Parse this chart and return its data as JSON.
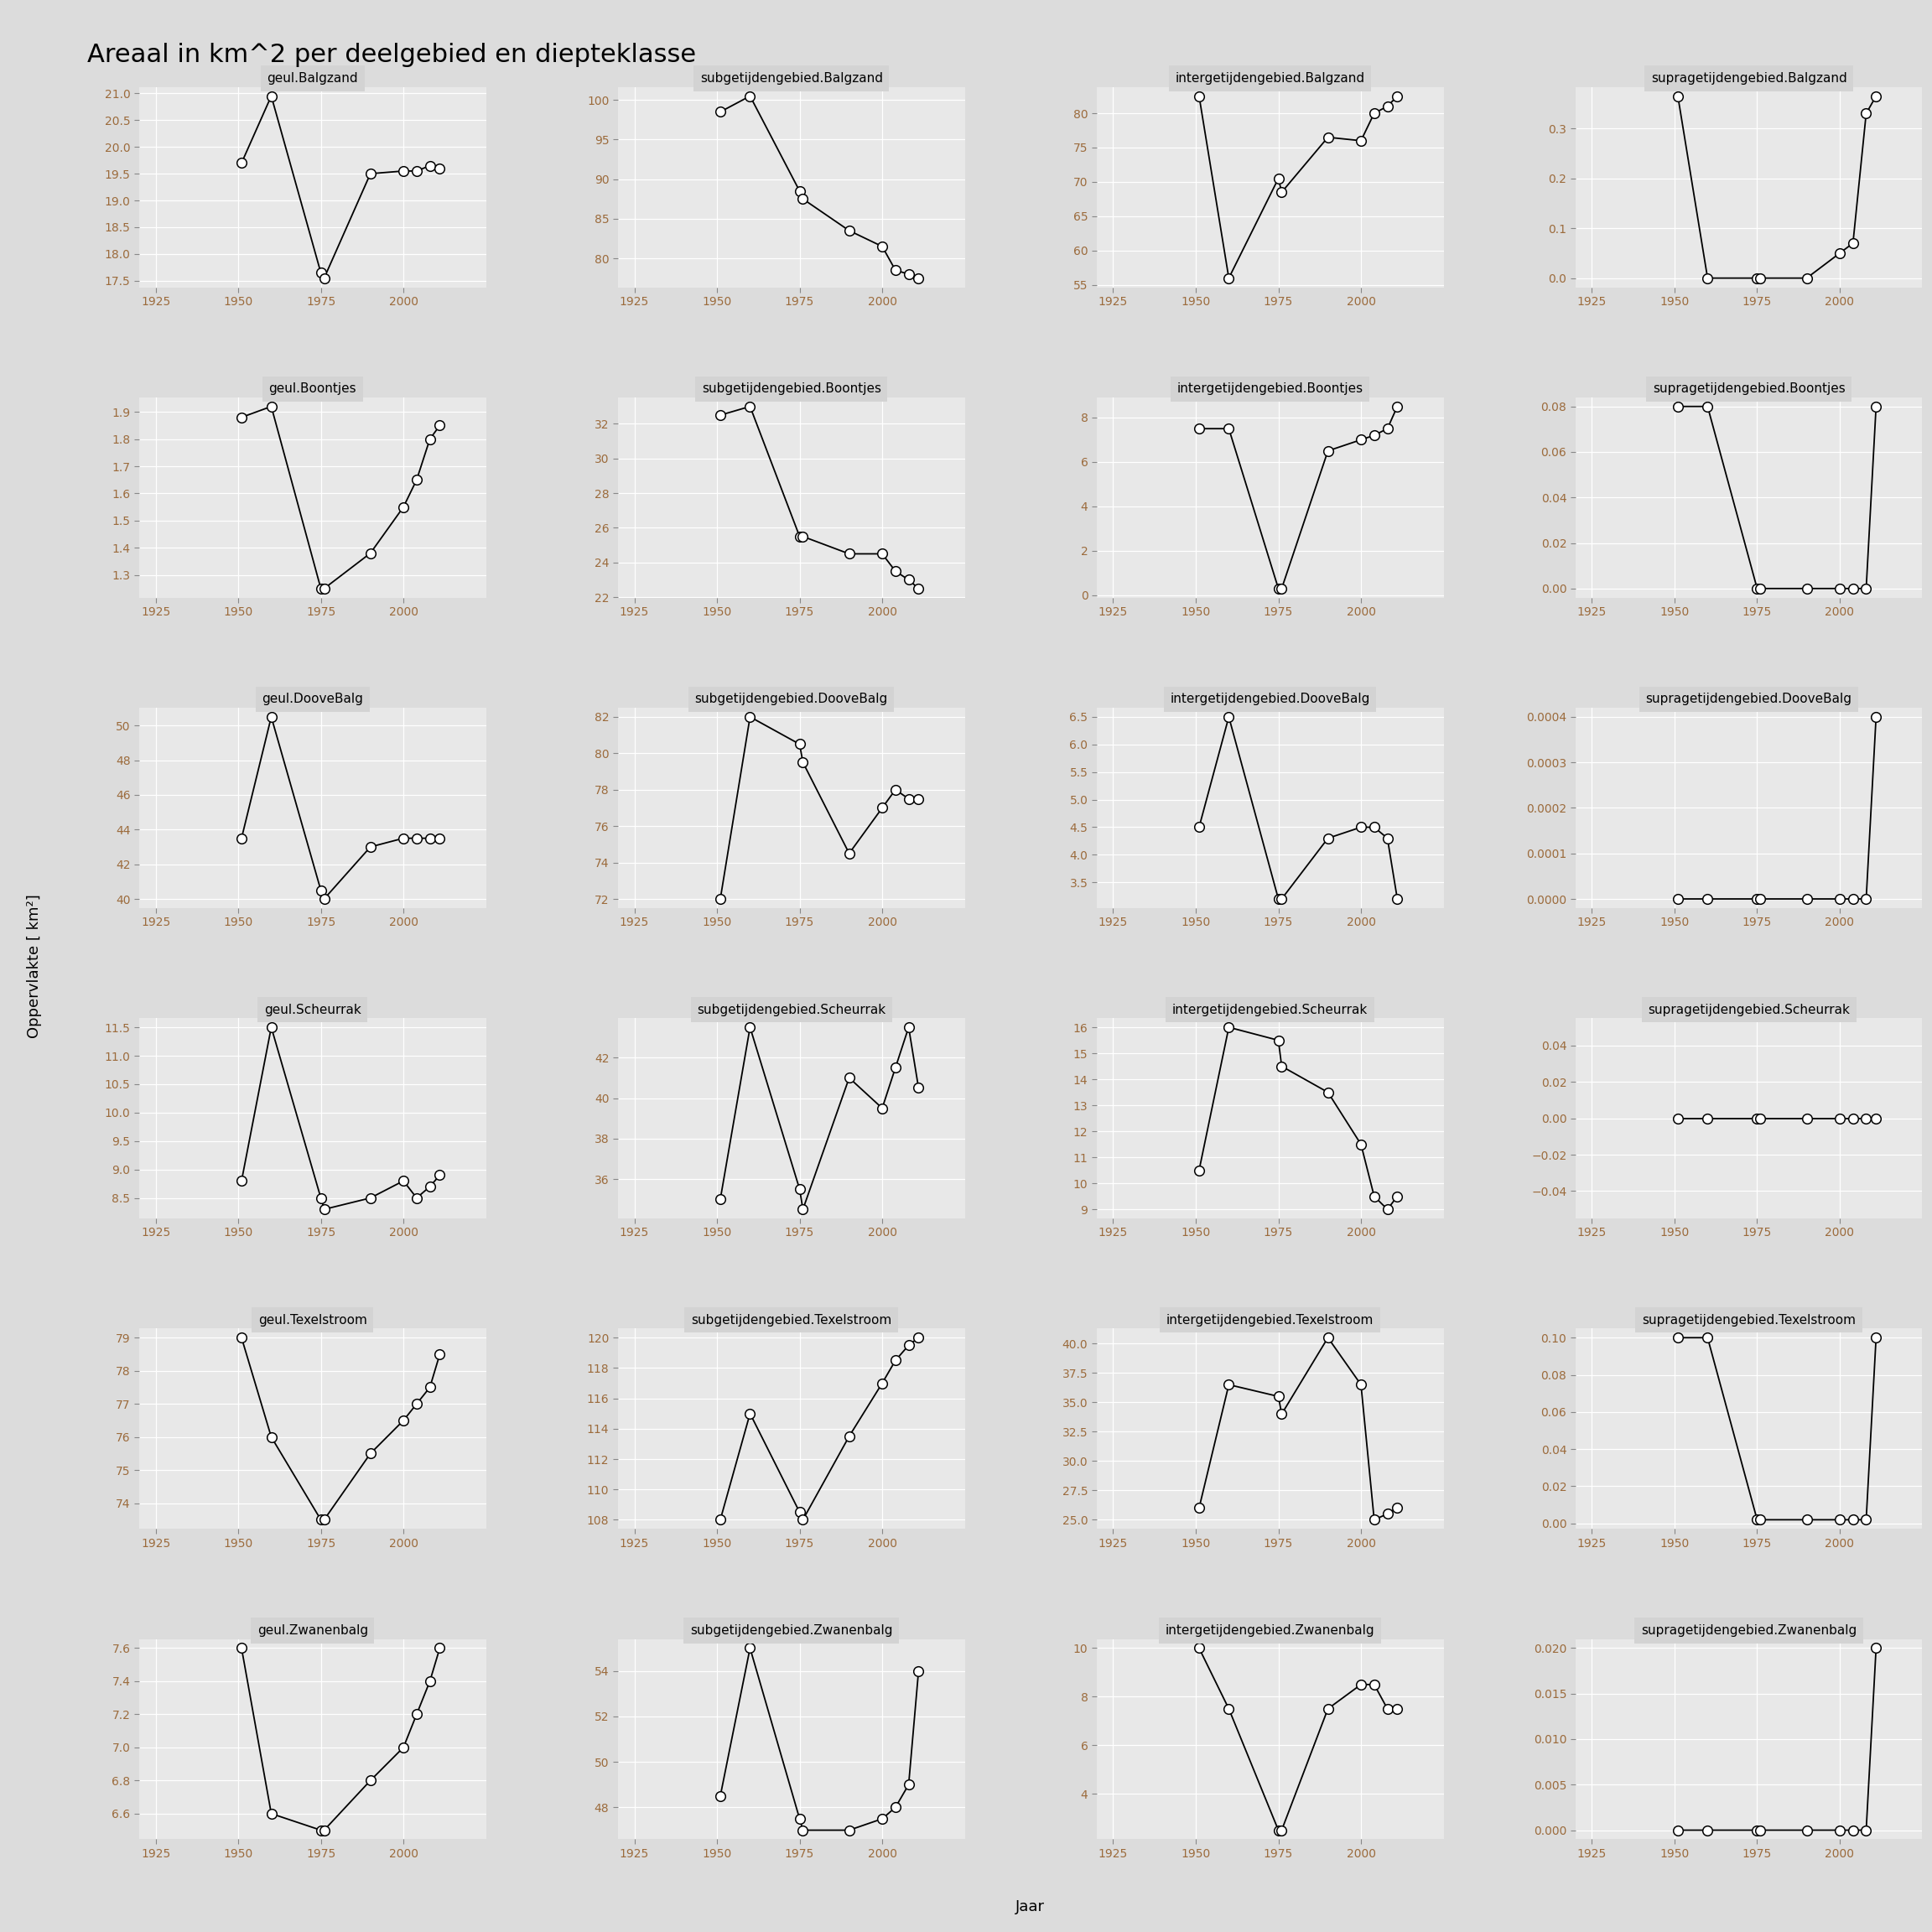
{
  "title": "Areaal in km^2 per deelgebied en diepteklasse",
  "ylabel": "Oppervlakte [ km²]",
  "xlabel": "Jaar",
  "bg_color": "#DCDCDC",
  "plot_bg_color": "#E8E8E8",
  "title_bg_color": "#D3D3D3",
  "grid_color": "#FFFFFF",
  "line_color": "#000000",
  "marker_facecolor": "#FFFFFF",
  "marker_edgecolor": "#000000",
  "tick_color": "#9C6B3C",
  "title_fontsize": 22,
  "label_fontsize": 13,
  "tick_fontsize": 10,
  "subplot_title_fontsize": 11,
  "subplots": [
    {
      "title": "geul.Balgzand",
      "x": [
        1951,
        1960,
        1975,
        1976,
        1990,
        2000,
        2004,
        2008,
        2011
      ],
      "y": [
        19.7,
        20.95,
        17.65,
        17.55,
        19.5,
        19.55,
        19.55,
        19.65,
        19.6
      ]
    },
    {
      "title": "subgetijdengebied.Balgzand",
      "x": [
        1951,
        1960,
        1975,
        1976,
        1990,
        2000,
        2004,
        2008,
        2011
      ],
      "y": [
        98.5,
        100.5,
        88.5,
        87.5,
        83.5,
        81.5,
        78.5,
        78.0,
        77.5
      ]
    },
    {
      "title": "intergetijdengebied.Balgzand",
      "x": [
        1951,
        1960,
        1975,
        1976,
        1990,
        2000,
        2004,
        2008,
        2011
      ],
      "y": [
        82.5,
        56.0,
        70.5,
        68.5,
        76.5,
        76.0,
        80.0,
        81.0,
        82.5
      ]
    },
    {
      "title": "supragetijdengebied.Balgzand",
      "x": [
        1951,
        1960,
        1975,
        1976,
        1990,
        2000,
        2004,
        2008,
        2011
      ],
      "y": [
        0.365,
        0.0,
        0.0,
        0.0,
        0.0,
        0.05,
        0.07,
        0.33,
        0.365
      ]
    },
    {
      "title": "geul.Boontjes",
      "x": [
        1951,
        1960,
        1975,
        1976,
        1990,
        2000,
        2004,
        2008,
        2011
      ],
      "y": [
        1.88,
        1.92,
        1.25,
        1.25,
        1.38,
        1.55,
        1.65,
        1.8,
        1.85
      ]
    },
    {
      "title": "subgetijdengebied.Boontjes",
      "x": [
        1951,
        1960,
        1975,
        1976,
        1990,
        2000,
        2004,
        2008,
        2011
      ],
      "y": [
        32.5,
        33.0,
        25.5,
        25.5,
        24.5,
        24.5,
        23.5,
        23.0,
        22.5
      ]
    },
    {
      "title": "intergetijdengebied.Boontjes",
      "x": [
        1951,
        1960,
        1975,
        1976,
        1990,
        2000,
        2004,
        2008,
        2011
      ],
      "y": [
        7.5,
        7.5,
        0.3,
        0.3,
        6.5,
        7.0,
        7.2,
        7.5,
        8.5
      ]
    },
    {
      "title": "supragetijdengebied.Boontjes",
      "x": [
        1951,
        1960,
        1975,
        1976,
        1990,
        2000,
        2004,
        2008,
        2011
      ],
      "y": [
        0.08,
        0.08,
        0.0,
        0.0,
        0.0,
        0.0,
        0.0,
        0.0,
        0.08
      ]
    },
    {
      "title": "geul.DooveBalg",
      "x": [
        1951,
        1960,
        1975,
        1976,
        1990,
        2000,
        2004,
        2008,
        2011
      ],
      "y": [
        43.5,
        50.5,
        40.5,
        40.0,
        43.0,
        43.5,
        43.5,
        43.5,
        43.5
      ]
    },
    {
      "title": "subgetijdengebied.DooveBalg",
      "x": [
        1951,
        1960,
        1975,
        1976,
        1990,
        2000,
        2004,
        2008,
        2011
      ],
      "y": [
        72.0,
        82.0,
        80.5,
        79.5,
        74.5,
        77.0,
        78.0,
        77.5,
        77.5
      ]
    },
    {
      "title": "intergetijdengebied.DooveBalg",
      "x": [
        1951,
        1960,
        1975,
        1976,
        1990,
        2000,
        2004,
        2008,
        2011
      ],
      "y": [
        4.5,
        6.5,
        3.2,
        3.2,
        4.3,
        4.5,
        4.5,
        4.3,
        3.2
      ]
    },
    {
      "title": "supragetijdengebied.DooveBalg",
      "x": [
        1951,
        1960,
        1975,
        1976,
        1990,
        2000,
        2004,
        2008,
        2011
      ],
      "y": [
        0.0,
        0.0,
        0.0,
        0.0,
        0.0,
        0.0,
        0.0,
        0.0,
        0.0004
      ]
    },
    {
      "title": "geul.Scheurrak",
      "x": [
        1951,
        1960,
        1975,
        1976,
        1990,
        2000,
        2004,
        2008,
        2011
      ],
      "y": [
        8.8,
        11.5,
        8.5,
        8.3,
        8.5,
        8.8,
        8.5,
        8.7,
        8.9
      ]
    },
    {
      "title": "subgetijdengebied.Scheurrak",
      "x": [
        1951,
        1960,
        1975,
        1976,
        1990,
        2000,
        2004,
        2008,
        2011
      ],
      "y": [
        35.0,
        43.5,
        35.5,
        34.5,
        41.0,
        39.5,
        41.5,
        43.5,
        40.5
      ]
    },
    {
      "title": "intergetijdengebied.Scheurrak",
      "x": [
        1951,
        1960,
        1975,
        1976,
        1990,
        2000,
        2004,
        2008,
        2011
      ],
      "y": [
        10.5,
        16.0,
        15.5,
        14.5,
        13.5,
        11.5,
        9.5,
        9.0,
        9.5
      ]
    },
    {
      "title": "supragetijdengebied.Scheurrak",
      "x": [
        1951,
        1960,
        1975,
        1976,
        1990,
        2000,
        2004,
        2008,
        2011
      ],
      "y": [
        0.0,
        0.0,
        0.0,
        0.0,
        0.0,
        0.0,
        0.0,
        0.0,
        0.0
      ]
    },
    {
      "title": "geul.Texelstroom",
      "x": [
        1951,
        1960,
        1975,
        1976,
        1990,
        2000,
        2004,
        2008,
        2011
      ],
      "y": [
        79.0,
        76.0,
        73.5,
        73.5,
        75.5,
        76.5,
        77.0,
        77.5,
        78.5
      ]
    },
    {
      "title": "subgetijdengebied.Texelstroom",
      "x": [
        1951,
        1960,
        1975,
        1976,
        1990,
        2000,
        2004,
        2008,
        2011
      ],
      "y": [
        108.0,
        115.0,
        108.5,
        108.0,
        113.5,
        117.0,
        118.5,
        119.5,
        120.0
      ]
    },
    {
      "title": "intergetijdengebied.Texelstroom",
      "x": [
        1951,
        1960,
        1975,
        1976,
        1990,
        2000,
        2004,
        2008,
        2011
      ],
      "y": [
        26.0,
        36.5,
        35.5,
        34.0,
        40.5,
        36.5,
        25.0,
        25.5,
        26.0
      ]
    },
    {
      "title": "supragetijdengebied.Texelstroom",
      "x": [
        1951,
        1960,
        1975,
        1976,
        1990,
        2000,
        2004,
        2008,
        2011
      ],
      "y": [
        0.1,
        0.1,
        0.002,
        0.002,
        0.002,
        0.002,
        0.002,
        0.002,
        0.1
      ]
    },
    {
      "title": "geul.Zwanenbalg",
      "x": [
        1951,
        1960,
        1975,
        1976,
        1990,
        2000,
        2004,
        2008,
        2011
      ],
      "y": [
        7.6,
        6.6,
        6.5,
        6.5,
        6.8,
        7.0,
        7.2,
        7.4,
        7.6
      ]
    },
    {
      "title": "subgetijdengebied.Zwanenbalg",
      "x": [
        1951,
        1960,
        1975,
        1976,
        1990,
        2000,
        2004,
        2008,
        2011
      ],
      "y": [
        48.5,
        55.0,
        47.5,
        47.0,
        47.0,
        47.5,
        48.0,
        49.0,
        54.0
      ]
    },
    {
      "title": "intergetijdengebied.Zwanenbalg",
      "x": [
        1951,
        1960,
        1975,
        1976,
        1990,
        2000,
        2004,
        2008,
        2011
      ],
      "y": [
        10.0,
        7.5,
        2.5,
        2.5,
        7.5,
        8.5,
        8.5,
        7.5,
        7.5
      ]
    },
    {
      "title": "supragetijdengebied.Zwanenbalg",
      "x": [
        1951,
        1960,
        1975,
        1976,
        1990,
        2000,
        2004,
        2008,
        2011
      ],
      "y": [
        0.0,
        0.0,
        0.0,
        0.0,
        0.0,
        0.0,
        0.0,
        0.0,
        0.02
      ]
    }
  ]
}
